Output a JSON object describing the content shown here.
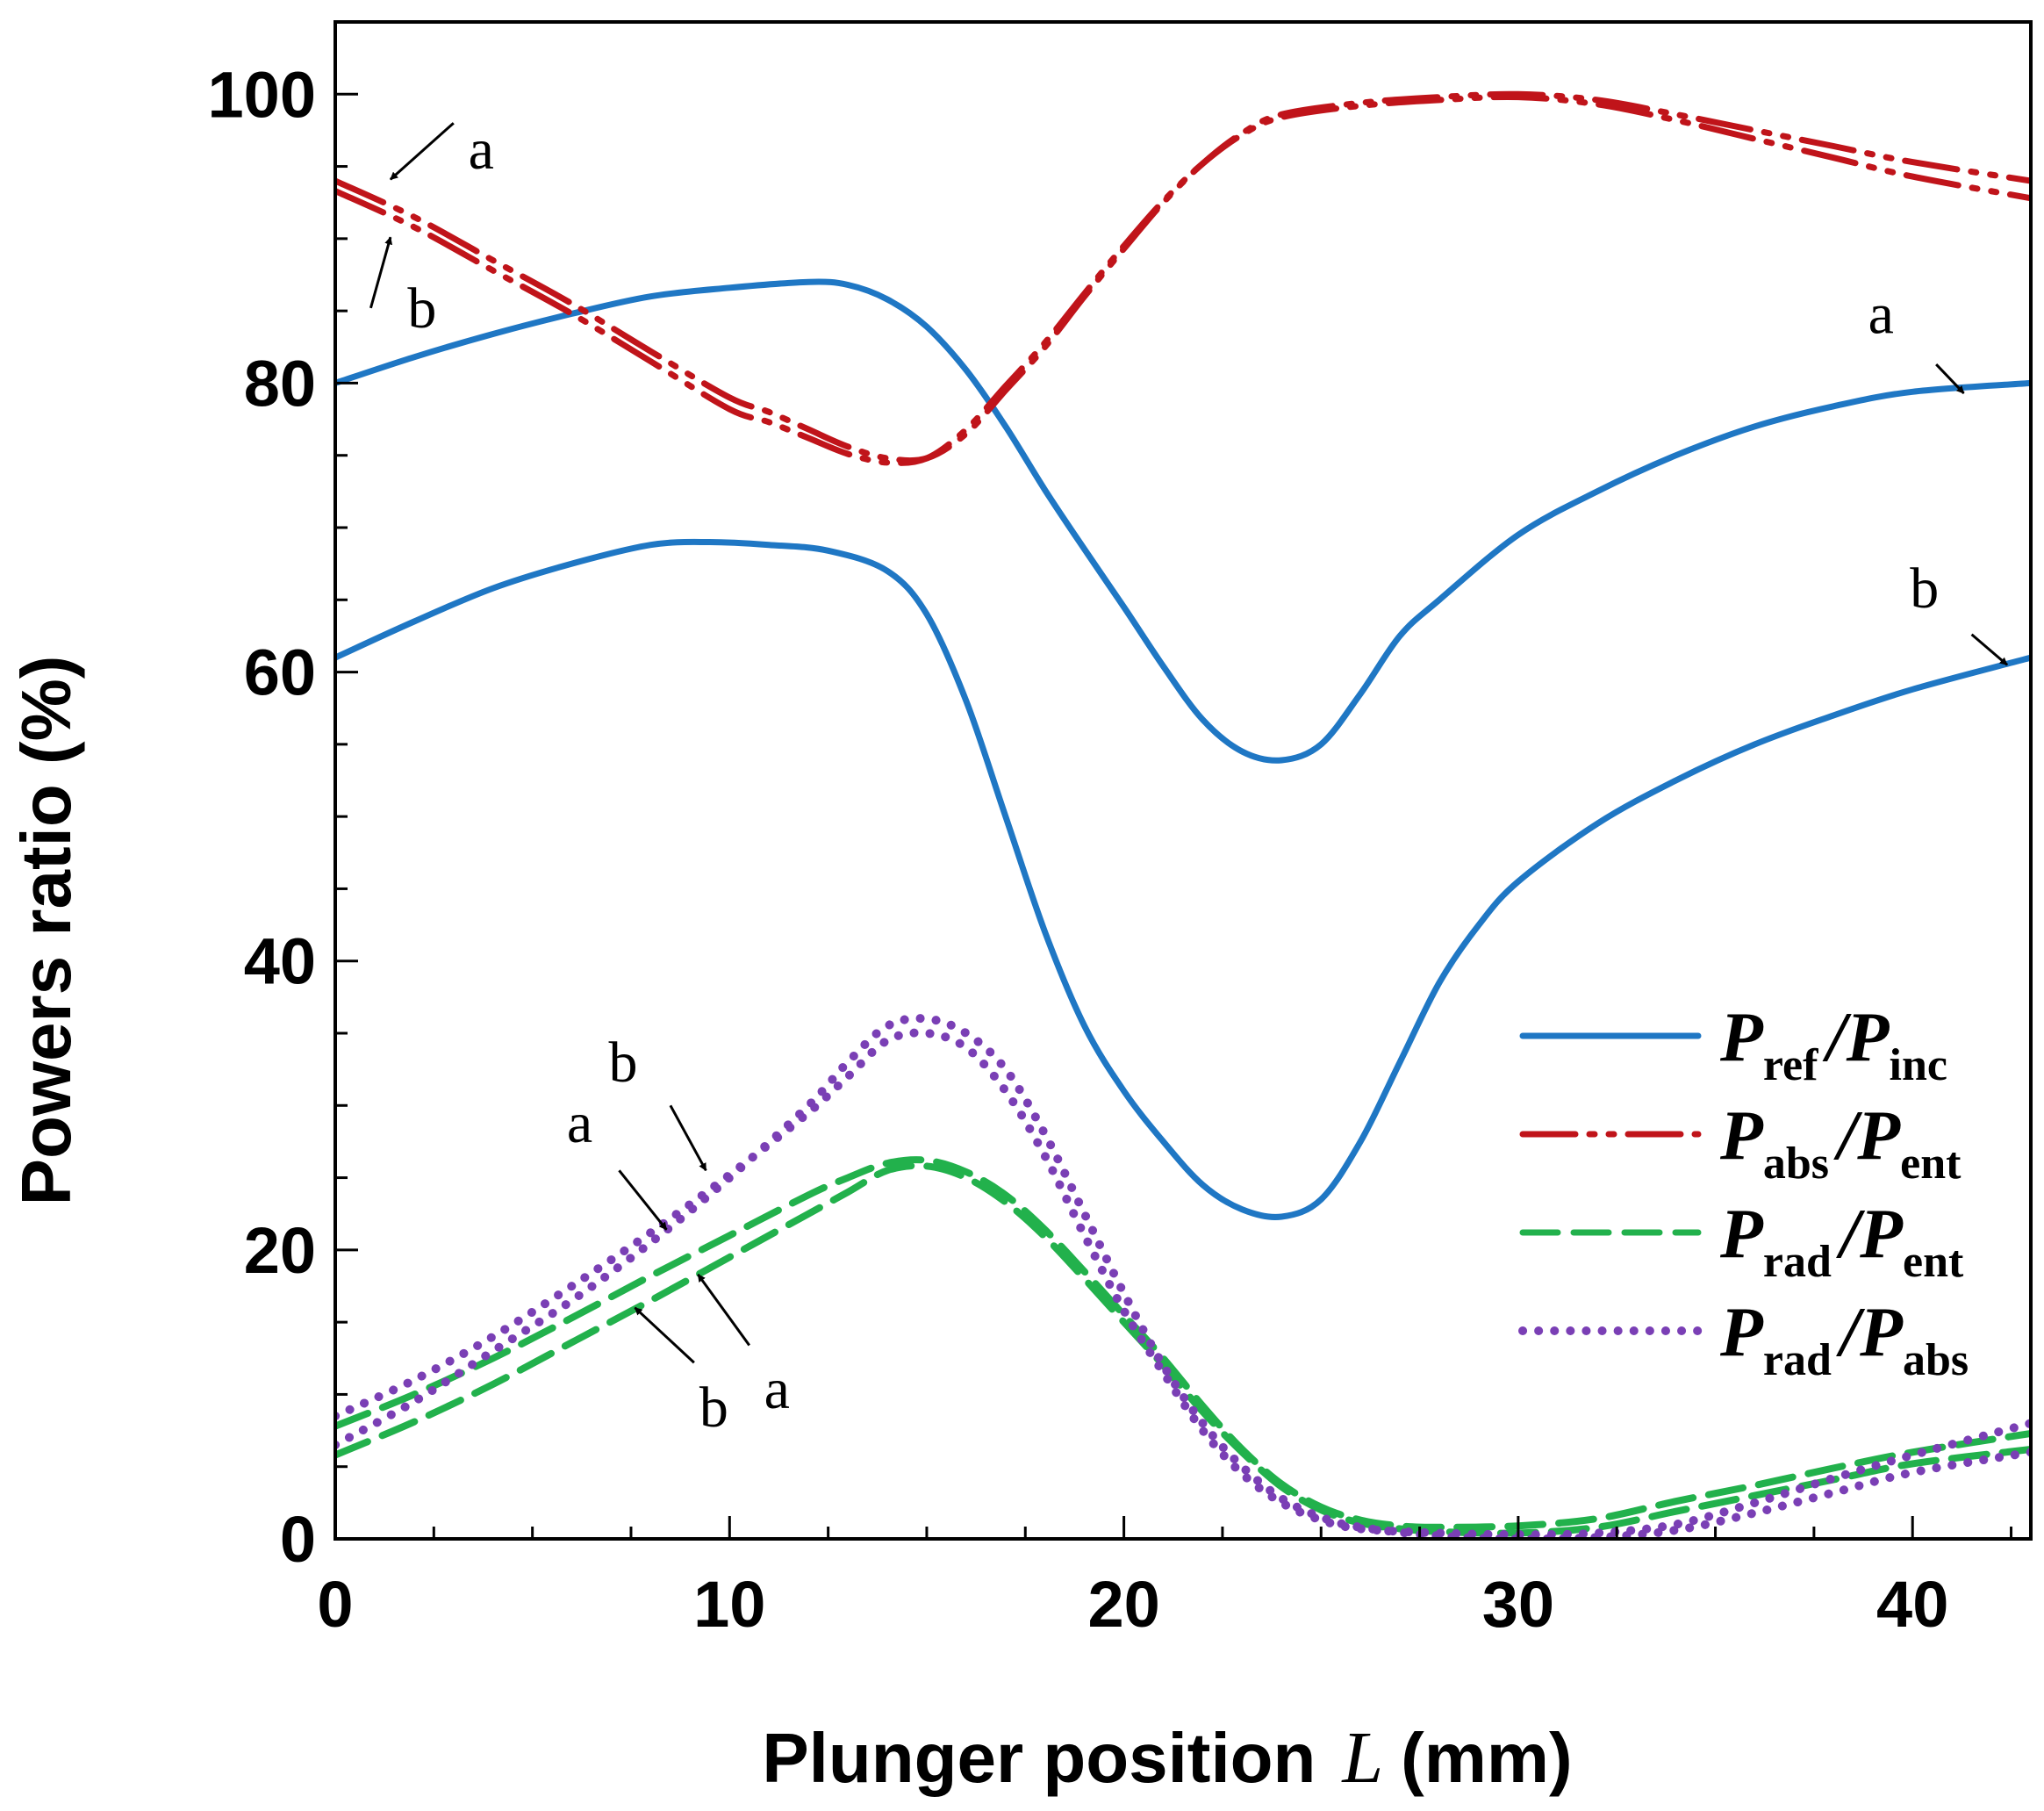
{
  "chart_data": {
    "type": "line",
    "title": "",
    "xlabel": "Plunger position",
    "xlabel_var": "L",
    "xlabel_unit": "(mm)",
    "ylabel": "Powers  ratio (%)",
    "xlim": [
      0,
      43
    ],
    "ylim": [
      0,
      105
    ],
    "xticks": [
      0,
      10,
      20,
      30,
      40
    ],
    "yticks": [
      0,
      20,
      40,
      60,
      80,
      100
    ],
    "x_minor_step": 2.5,
    "y_minor_step": 5,
    "grid": false,
    "legend_position": "bottom-right",
    "series": [
      {
        "key": "ref-a",
        "legend": "ref_inc",
        "case": "a",
        "color": "#1f77c4",
        "dash": "solid",
        "width": 7,
        "points": [
          [
            0,
            80
          ],
          [
            2,
            81.8
          ],
          [
            4,
            83.4
          ],
          [
            6,
            84.8
          ],
          [
            8,
            86
          ],
          [
            10,
            86.6
          ],
          [
            12,
            87
          ],
          [
            13,
            86.8
          ],
          [
            14,
            85.8
          ],
          [
            15,
            83.9
          ],
          [
            16,
            80.9
          ],
          [
            17,
            77
          ],
          [
            18,
            72.6
          ],
          [
            19,
            68.5
          ],
          [
            20,
            64.5
          ],
          [
            21,
            60.4
          ],
          [
            22,
            56.7
          ],
          [
            23,
            54.5
          ],
          [
            24,
            53.9
          ],
          [
            25,
            55
          ],
          [
            26,
            58.5
          ],
          [
            27,
            62.5
          ],
          [
            28,
            65
          ],
          [
            30,
            69.5
          ],
          [
            32,
            72.5
          ],
          [
            34,
            75
          ],
          [
            36,
            77
          ],
          [
            38,
            78.4
          ],
          [
            40,
            79.4
          ],
          [
            43,
            80
          ]
        ]
      },
      {
        "key": "ref-b",
        "legend": "ref_inc",
        "case": "b",
        "color": "#1f77c4",
        "dash": "solid",
        "width": 7,
        "points": [
          [
            0,
            61
          ],
          [
            2,
            63.5
          ],
          [
            4,
            65.8
          ],
          [
            6,
            67.5
          ],
          [
            8,
            68.8
          ],
          [
            9.5,
            69
          ],
          [
            11,
            68.8
          ],
          [
            12.5,
            68.4
          ],
          [
            14,
            67
          ],
          [
            15,
            64
          ],
          [
            16,
            58
          ],
          [
            17,
            50
          ],
          [
            18,
            42
          ],
          [
            19,
            35.5
          ],
          [
            20,
            31
          ],
          [
            21,
            27.5
          ],
          [
            22,
            24.5
          ],
          [
            23,
            22.8
          ],
          [
            24,
            22.3
          ],
          [
            25,
            23.5
          ],
          [
            26,
            27.5
          ],
          [
            27,
            33
          ],
          [
            28,
            38.5
          ],
          [
            29,
            42.5
          ],
          [
            30,
            45.5
          ],
          [
            32,
            49.5
          ],
          [
            34,
            52.5
          ],
          [
            36,
            55
          ],
          [
            38,
            57
          ],
          [
            40,
            58.8
          ],
          [
            43,
            61
          ]
        ]
      },
      {
        "key": "abs-a",
        "legend": "abs_ent",
        "case": "a",
        "color": "#c0141a",
        "dash": "dashdotdot",
        "width": 7,
        "points": [
          [
            0,
            94
          ],
          [
            2,
            91.5
          ],
          [
            4,
            88.5
          ],
          [
            6,
            85.5
          ],
          [
            8,
            82.2
          ],
          [
            10,
            79
          ],
          [
            11,
            78
          ],
          [
            12,
            76.8
          ],
          [
            13,
            75.6
          ],
          [
            14,
            74.8
          ],
          [
            15,
            74.8
          ],
          [
            16,
            76.5
          ],
          [
            17,
            79.5
          ],
          [
            18,
            82.5
          ],
          [
            19,
            86
          ],
          [
            20,
            89.3
          ],
          [
            21,
            92.5
          ],
          [
            22,
            95.2
          ],
          [
            23,
            97.3
          ],
          [
            24,
            98.6
          ],
          [
            26,
            99.4
          ],
          [
            28,
            99.8
          ],
          [
            30,
            100
          ],
          [
            32,
            99.6
          ],
          [
            34,
            98.6
          ],
          [
            36,
            97.5
          ],
          [
            38,
            96.4
          ],
          [
            40,
            95.3
          ],
          [
            43,
            94
          ]
        ]
      },
      {
        "key": "abs-b",
        "legend": "abs_ent",
        "case": "b",
        "color": "#c0141a",
        "dash": "dashdotdot",
        "width": 7,
        "points": [
          [
            0,
            93.3
          ],
          [
            2,
            90.8
          ],
          [
            4,
            87.8
          ],
          [
            6,
            84.8
          ],
          [
            8,
            81.5
          ],
          [
            10,
            78.2
          ],
          [
            11,
            77.3
          ],
          [
            12,
            76.2
          ],
          [
            13,
            75.1
          ],
          [
            14,
            74.5
          ],
          [
            15,
            74.8
          ],
          [
            16,
            76.8
          ],
          [
            17,
            79.8
          ],
          [
            18,
            82.8
          ],
          [
            19,
            86.2
          ],
          [
            20,
            89.5
          ],
          [
            21,
            92.6
          ],
          [
            22,
            95.2
          ],
          [
            23,
            97.2
          ],
          [
            24,
            98.4
          ],
          [
            26,
            99.2
          ],
          [
            28,
            99.6
          ],
          [
            30,
            99.8
          ],
          [
            32,
            99.3
          ],
          [
            34,
            98.2
          ],
          [
            36,
            96.9
          ],
          [
            38,
            95.6
          ],
          [
            40,
            94.3
          ],
          [
            43,
            92.8
          ]
        ]
      },
      {
        "key": "rad-ent-a",
        "legend": "rad_ent",
        "case": "a",
        "color": "#22b14c",
        "dash": "dashed",
        "width": 8,
        "points": [
          [
            0,
            7.8
          ],
          [
            2,
            10
          ],
          [
            4,
            12.5
          ],
          [
            6,
            15.3
          ],
          [
            8,
            18.2
          ],
          [
            10,
            21
          ],
          [
            12,
            23.8
          ],
          [
            13,
            25
          ],
          [
            14,
            26
          ],
          [
            15,
            26.2
          ],
          [
            16,
            25.4
          ],
          [
            17,
            23.8
          ],
          [
            18,
            21.4
          ],
          [
            19,
            18.5
          ],
          [
            20,
            15.5
          ],
          [
            21,
            12.5
          ],
          [
            22,
            9.2
          ],
          [
            23,
            6.2
          ],
          [
            24,
            3.8
          ],
          [
            25,
            2.2
          ],
          [
            26,
            1.3
          ],
          [
            27,
            0.9
          ],
          [
            28,
            0.8
          ],
          [
            30,
            0.9
          ],
          [
            32,
            1.4
          ],
          [
            34,
            2.6
          ],
          [
            36,
            3.7
          ],
          [
            38,
            4.9
          ],
          [
            40,
            6
          ],
          [
            43,
            7.3
          ]
        ]
      },
      {
        "key": "rad-ent-b",
        "legend": "rad_ent",
        "case": "b",
        "color": "#22b14c",
        "dash": "dashed",
        "width": 8,
        "points": [
          [
            0,
            5.8
          ],
          [
            2,
            8.1
          ],
          [
            4,
            10.7
          ],
          [
            6,
            13.6
          ],
          [
            8,
            16.5
          ],
          [
            10,
            19.5
          ],
          [
            12,
            22.5
          ],
          [
            13,
            24
          ],
          [
            14,
            25.5
          ],
          [
            15,
            25.8
          ],
          [
            16,
            25
          ],
          [
            17,
            23.3
          ],
          [
            18,
            20.9
          ],
          [
            19,
            18
          ],
          [
            20,
            15
          ],
          [
            21,
            12
          ],
          [
            22,
            8.8
          ],
          [
            23,
            6
          ],
          [
            24,
            3.6
          ],
          [
            25,
            2
          ],
          [
            26,
            1.1
          ],
          [
            27,
            0.7
          ],
          [
            28,
            0.5
          ],
          [
            30,
            0.4
          ],
          [
            32,
            0.8
          ],
          [
            34,
            1.9
          ],
          [
            36,
            3
          ],
          [
            38,
            4.1
          ],
          [
            40,
            5.2
          ],
          [
            43,
            6.2
          ]
        ]
      },
      {
        "key": "rad-abs-a",
        "legend": "rad_abs",
        "case": "a",
        "color": "#7a3fb5",
        "dash": "dotted",
        "width": 10,
        "points": [
          [
            0,
            8.5
          ],
          [
            2,
            11
          ],
          [
            4,
            14
          ],
          [
            6,
            17.5
          ],
          [
            8,
            21.2
          ],
          [
            10,
            25.2
          ],
          [
            12,
            29.5
          ],
          [
            13,
            32
          ],
          [
            14,
            34.5
          ],
          [
            15,
            35
          ],
          [
            16,
            34
          ],
          [
            17,
            31
          ],
          [
            18,
            26.5
          ],
          [
            19,
            21
          ],
          [
            20,
            15.8
          ],
          [
            21,
            11.5
          ],
          [
            22,
            7.5
          ],
          [
            23,
            4.5
          ],
          [
            24,
            2.5
          ],
          [
            25,
            1.3
          ],
          [
            26,
            0.7
          ],
          [
            28,
            0.4
          ],
          [
            30,
            0.3
          ],
          [
            32,
            0.4
          ],
          [
            34,
            1
          ],
          [
            36,
            2.5
          ],
          [
            38,
            4.2
          ],
          [
            40,
            5.8
          ],
          [
            43,
            8
          ]
        ]
      },
      {
        "key": "rad-abs-b",
        "legend": "rad_abs",
        "case": "b",
        "color": "#7a3fb5",
        "dash": "dotted",
        "width": 10,
        "points": [
          [
            0,
            6.5
          ],
          [
            2,
            9.5
          ],
          [
            4,
            13
          ],
          [
            6,
            16.5
          ],
          [
            8,
            20.5
          ],
          [
            10,
            25
          ],
          [
            12,
            30
          ],
          [
            13,
            33
          ],
          [
            14,
            35.5
          ],
          [
            15,
            36
          ],
          [
            16,
            35
          ],
          [
            17,
            32.5
          ],
          [
            18,
            28
          ],
          [
            19,
            22.5
          ],
          [
            20,
            17
          ],
          [
            21,
            12
          ],
          [
            22,
            8
          ],
          [
            23,
            5
          ],
          [
            24,
            2.8
          ],
          [
            25,
            1.5
          ],
          [
            26,
            0.8
          ],
          [
            28,
            0.2
          ],
          [
            30,
            0
          ],
          [
            32,
            0.1
          ],
          [
            34,
            0.6
          ],
          [
            36,
            1.8
          ],
          [
            38,
            3.2
          ],
          [
            40,
            4.6
          ],
          [
            43,
            6
          ]
        ]
      }
    ],
    "legend": [
      {
        "key": "ref_inc",
        "color": "#1f77c4",
        "dash": "solid",
        "num": "P",
        "num_sub": "ref",
        "slash": "/",
        "den": "P",
        "den_sub": "inc"
      },
      {
        "key": "abs_ent",
        "color": "#c0141a",
        "dash": "dashdotdot",
        "num": "P",
        "num_sub": "abs",
        "slash": "/",
        "den": "P",
        "den_sub": "ent"
      },
      {
        "key": "rad_ent",
        "color": "#22b14c",
        "dash": "dashed",
        "num": "P",
        "num_sub": "rad",
        "slash": "/",
        "den": "P",
        "den_sub": "ent"
      },
      {
        "key": "rad_abs",
        "color": "#7a3fb5",
        "dash": "dotted",
        "num": "P",
        "num_sub": "rad",
        "slash": "/",
        "den": "P",
        "den_sub": "abs"
      }
    ],
    "annotations": [
      {
        "text": "a",
        "label_at": [
          3.7,
          96.2
        ],
        "arrow_from": [
          3.0,
          98.0
        ],
        "arrow_to": [
          1.4,
          94.1
        ]
      },
      {
        "text": "b",
        "label_at": [
          2.2,
          85.2
        ],
        "arrow_from": [
          0.9,
          85.2
        ],
        "arrow_to": [
          1.4,
          90.1
        ]
      },
      {
        "text": "a",
        "label_at": [
          39.2,
          84.8
        ],
        "arrow_from": [
          40.6,
          81.3
        ],
        "arrow_to": [
          41.3,
          79.3
        ]
      },
      {
        "text": "b",
        "label_at": [
          40.3,
          65.8
        ],
        "arrow_from": [
          41.5,
          62.6
        ],
        "arrow_to": [
          42.4,
          60.5
        ]
      },
      {
        "text": "b",
        "label_at": [
          7.3,
          33.0
        ],
        "arrow_from": [
          8.5,
          30.0
        ],
        "arrow_to": [
          9.4,
          25.5
        ]
      },
      {
        "text": "a",
        "label_at": [
          6.2,
          28.8
        ],
        "arrow_from": [
          7.2,
          25.5
        ],
        "arrow_to": [
          8.4,
          21.4
        ]
      },
      {
        "text": "a",
        "label_at": [
          11.2,
          10.4
        ],
        "arrow_from": [
          10.5,
          13.4
        ],
        "arrow_to": [
          9.2,
          18.3
        ]
      },
      {
        "text": "b",
        "label_at": [
          9.6,
          9.1
        ],
        "arrow_from": [
          9.1,
          12.2
        ],
        "arrow_to": [
          7.6,
          16.0
        ]
      }
    ]
  }
}
